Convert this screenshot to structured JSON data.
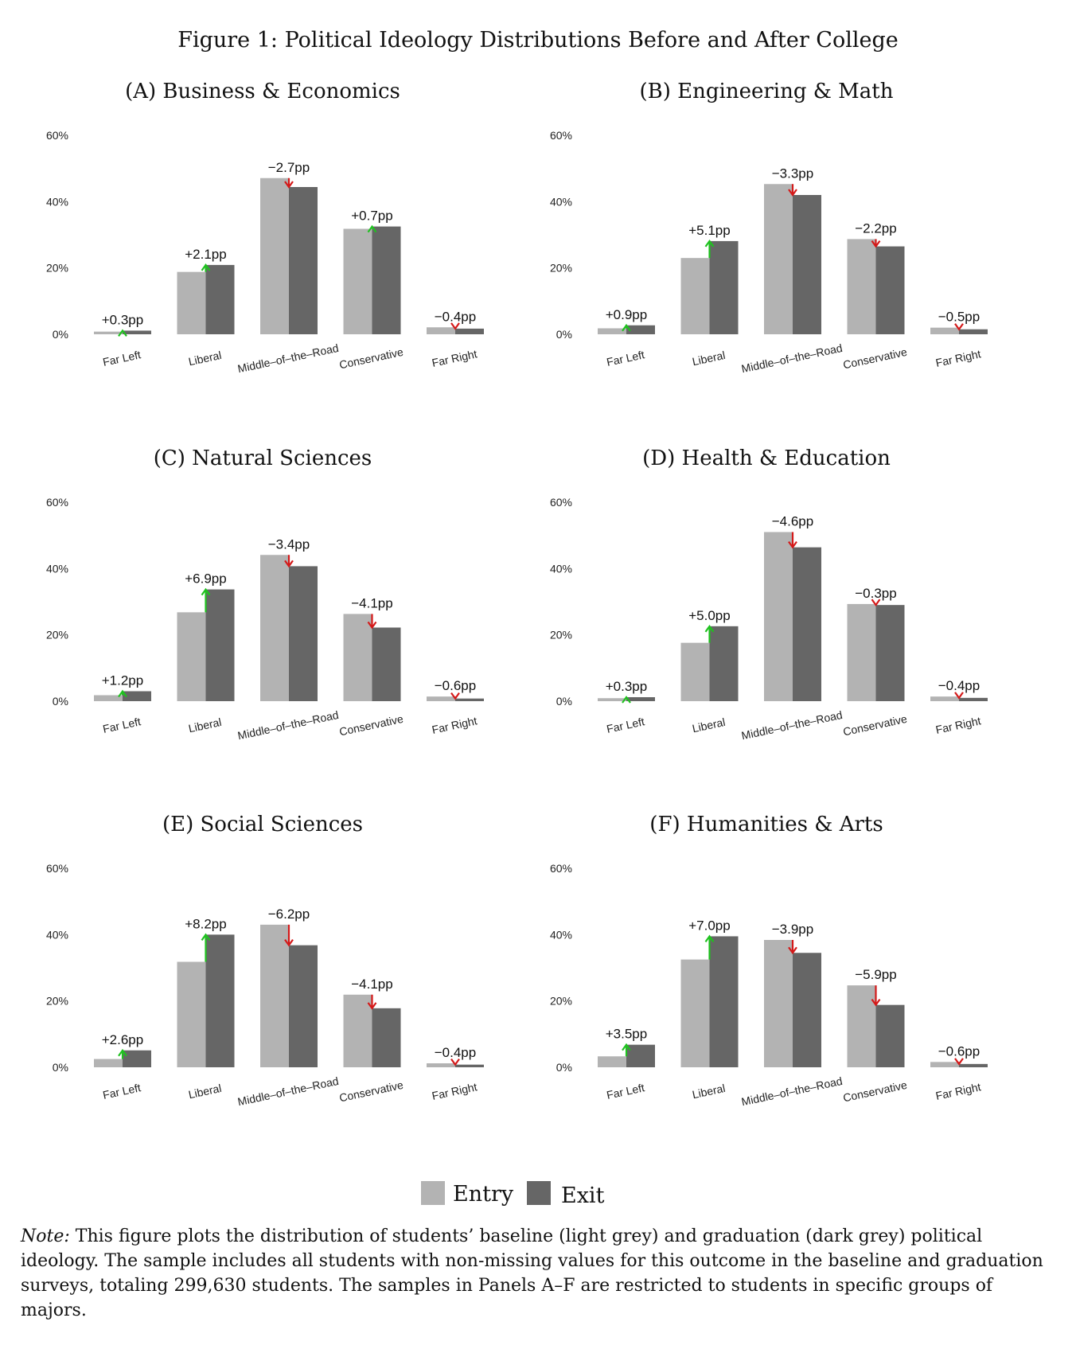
{
  "figure_title": "Figure 1: Political Ideology Distributions Before and After College",
  "legend": {
    "entry_label": "Entry",
    "exit_label": "Exit",
    "entry_color": "#b3b3b3",
    "exit_color": "#666666"
  },
  "colors": {
    "increase_arrow": "#1fc21f",
    "decrease_arrow": "#d41919"
  },
  "note": {
    "label": "Note:",
    "text": "This figure plots the distribution of students’ baseline (light grey) and graduation (dark grey) political ideology. The sample includes all students with non-missing values for this outcome in the baseline and graduation surveys, totaling 299,630 students. The samples in Panels A–F are restricted to students in specific groups of majors."
  },
  "chart_data": [
    {
      "type": "bar",
      "title": "(A) Business & Economics",
      "categories": [
        "Far Left",
        "Liberal",
        "Middle–of–the–Road",
        "Conservative",
        "Far Right"
      ],
      "yticks": [
        "0%",
        "20%",
        "40%",
        "60%"
      ],
      "ylim": [
        0,
        60
      ],
      "series": [
        {
          "name": "Entry",
          "values": [
            0.8,
            18.8,
            47.1,
            31.8,
            2.1
          ]
        },
        {
          "name": "Exit",
          "values": [
            1.1,
            20.9,
            44.4,
            32.5,
            1.7
          ]
        }
      ],
      "change_labels": [
        "+0.3pp",
        "+2.1pp",
        "−2.7pp",
        "+0.7pp",
        "−0.4pp"
      ]
    },
    {
      "type": "bar",
      "title": "(B) Engineering & Math",
      "categories": [
        "Far Left",
        "Liberal",
        "Middle–of–the–Road",
        "Conservative",
        "Far Right"
      ],
      "yticks": [
        "0%",
        "20%",
        "40%",
        "60%"
      ],
      "ylim": [
        0,
        60
      ],
      "series": [
        {
          "name": "Entry",
          "values": [
            1.8,
            23.0,
            45.3,
            28.7,
            2.0
          ]
        },
        {
          "name": "Exit",
          "values": [
            2.7,
            28.1,
            42.0,
            26.5,
            1.5
          ]
        }
      ],
      "change_labels": [
        "+0.9pp",
        "+5.1pp",
        "−3.3pp",
        "−2.2pp",
        "−0.5pp"
      ]
    },
    {
      "type": "bar",
      "title": "(C) Natural Sciences",
      "categories": [
        "Far Left",
        "Liberal",
        "Middle–of–the–Road",
        "Conservative",
        "Far Right"
      ],
      "yticks": [
        "0%",
        "20%",
        "40%",
        "60%"
      ],
      "ylim": [
        0,
        60
      ],
      "series": [
        {
          "name": "Entry",
          "values": [
            1.8,
            26.8,
            44.1,
            26.3,
            1.4
          ]
        },
        {
          "name": "Exit",
          "values": [
            3.0,
            33.7,
            40.7,
            22.2,
            0.8
          ]
        }
      ],
      "change_labels": [
        "+1.2pp",
        "+6.9pp",
        "−3.4pp",
        "−4.1pp",
        "−0.6pp"
      ]
    },
    {
      "type": "bar",
      "title": "(D) Health & Education",
      "categories": [
        "Far Left",
        "Liberal",
        "Middle–of–the–Road",
        "Conservative",
        "Far Right"
      ],
      "yticks": [
        "0%",
        "20%",
        "40%",
        "60%"
      ],
      "ylim": [
        0,
        60
      ],
      "series": [
        {
          "name": "Entry",
          "values": [
            0.9,
            17.6,
            51.0,
            29.3,
            1.4
          ]
        },
        {
          "name": "Exit",
          "values": [
            1.2,
            22.6,
            46.4,
            29.0,
            1.0
          ]
        }
      ],
      "change_labels": [
        "+0.3pp",
        "+5.0pp",
        "−4.6pp",
        "−0.3pp",
        "−0.4pp"
      ]
    },
    {
      "type": "bar",
      "title": "(E) Social Sciences",
      "categories": [
        "Far Left",
        "Liberal",
        "Middle–of–the–Road",
        "Conservative",
        "Far Right"
      ],
      "yticks": [
        "0%",
        "20%",
        "40%",
        "60%"
      ],
      "ylim": [
        0,
        60
      ],
      "series": [
        {
          "name": "Entry",
          "values": [
            2.5,
            31.8,
            43.0,
            21.9,
            1.2
          ]
        },
        {
          "name": "Exit",
          "values": [
            5.1,
            40.0,
            36.8,
            17.8,
            0.8
          ]
        }
      ],
      "change_labels": [
        "+2.6pp",
        "+8.2pp",
        "−6.2pp",
        "−4.1pp",
        "−0.4pp"
      ]
    },
    {
      "type": "bar",
      "title": "(F) Humanities & Arts",
      "categories": [
        "Far Left",
        "Liberal",
        "Middle–of–the–Road",
        "Conservative",
        "Far Right"
      ],
      "yticks": [
        "0%",
        "20%",
        "40%",
        "60%"
      ],
      "ylim": [
        0,
        60
      ],
      "series": [
        {
          "name": "Entry",
          "values": [
            3.3,
            32.5,
            38.4,
            24.7,
            1.6
          ]
        },
        {
          "name": "Exit",
          "values": [
            6.8,
            39.5,
            34.5,
            18.8,
            1.0
          ]
        }
      ],
      "change_labels": [
        "+3.5pp",
        "+7.0pp",
        "−3.9pp",
        "−5.9pp",
        "−0.6pp"
      ]
    }
  ]
}
